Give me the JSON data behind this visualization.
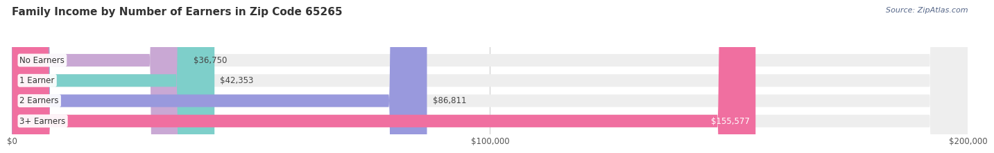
{
  "title": "Family Income by Number of Earners in Zip Code 65265",
  "source": "Source: ZipAtlas.com",
  "categories": [
    "No Earners",
    "1 Earner",
    "2 Earners",
    "3+ Earners"
  ],
  "values": [
    36750,
    42353,
    86811,
    155577
  ],
  "bar_colors": [
    "#c9a8d4",
    "#7ecfca",
    "#9999dd",
    "#f06fa0"
  ],
  "bar_bg_color": "#eeeeee",
  "value_labels": [
    "$36,750",
    "$42,353",
    "$86,811",
    "$155,577"
  ],
  "value_inside": [
    false,
    false,
    false,
    true
  ],
  "xlim": [
    0,
    200000
  ],
  "xticks": [
    0,
    100000,
    200000
  ],
  "xtick_labels": [
    "$0",
    "$100,000",
    "$200,000"
  ],
  "background_color": "#ffffff",
  "title_fontsize": 11,
  "bar_height": 0.62,
  "figsize": [
    14.06,
    2.33
  ]
}
